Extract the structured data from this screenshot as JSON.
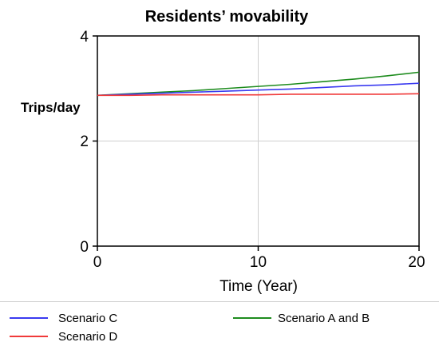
{
  "chart_data": {
    "type": "line",
    "title": "Residents’ movability",
    "ylabel": "Trips/day",
    "xlabel": "Time (Year)",
    "xlim": [
      0,
      20
    ],
    "ylim": [
      0,
      4
    ],
    "xticks": [
      "0",
      "10",
      "20"
    ],
    "yticks": [
      "0",
      "2",
      "4"
    ],
    "grid": true,
    "legend_position": "bottom",
    "x": [
      0,
      2,
      4,
      6,
      8,
      10,
      12,
      14,
      16,
      18,
      20
    ],
    "series": [
      {
        "name": "Scenario C",
        "color": "#3a3af0",
        "values": [
          2.87,
          2.89,
          2.91,
          2.93,
          2.95,
          2.97,
          2.99,
          3.02,
          3.05,
          3.07,
          3.1
        ]
      },
      {
        "name": "Scenario A and B",
        "color": "#1e8c1e",
        "values": [
          2.87,
          2.9,
          2.93,
          2.96,
          3.0,
          3.04,
          3.08,
          3.13,
          3.18,
          3.24,
          3.31
        ]
      },
      {
        "name": "Scenario D",
        "color": "#f03a3a",
        "values": [
          2.87,
          2.87,
          2.88,
          2.88,
          2.88,
          2.88,
          2.89,
          2.89,
          2.89,
          2.89,
          2.9
        ]
      }
    ]
  }
}
